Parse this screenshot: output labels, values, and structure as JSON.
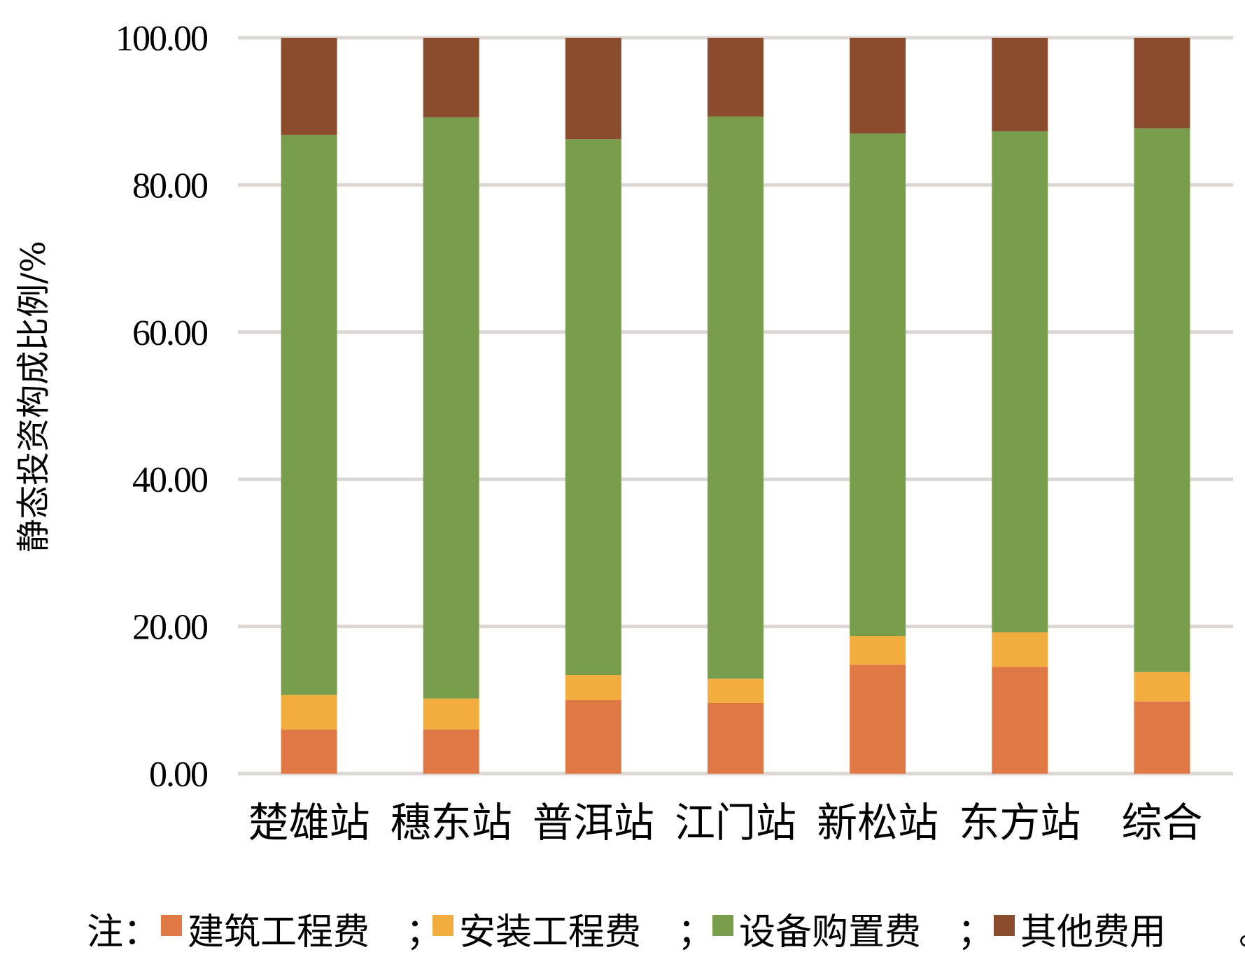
{
  "chart_data": {
    "type": "bar",
    "stacked": true,
    "ylabel": "静态投资构成比例/%",
    "ylim": [
      0,
      100
    ],
    "yticks": [
      "0.00",
      "20.00",
      "40.00",
      "60.00",
      "80.00",
      "100.00"
    ],
    "grid": true,
    "categories": [
      "楚雄站",
      "穗东站",
      "普洱站",
      "江门站",
      "新松站",
      "东方站",
      "综合"
    ],
    "series": [
      {
        "name": "建筑工程费",
        "color": "#e07845",
        "values": [
          6.0,
          6.0,
          10.0,
          9.6,
          14.8,
          14.5,
          9.8
        ]
      },
      {
        "name": "安装工程费",
        "color": "#f2ad3e",
        "values": [
          4.7,
          4.2,
          3.4,
          3.3,
          3.9,
          4.7,
          4.0
        ]
      },
      {
        "name": "设备购置费",
        "color": "#789e4b",
        "values": [
          76.1,
          79.0,
          72.8,
          76.4,
          68.3,
          68.1,
          73.9
        ]
      },
      {
        "name": "其他费用",
        "color": "#8b4b2d",
        "values": [
          13.2,
          10.8,
          13.8,
          10.7,
          13.0,
          12.7,
          12.3
        ]
      }
    ],
    "legend": {
      "placement": "bottom",
      "prefix": "注：",
      "separator": "；",
      "terminator": "。"
    }
  }
}
